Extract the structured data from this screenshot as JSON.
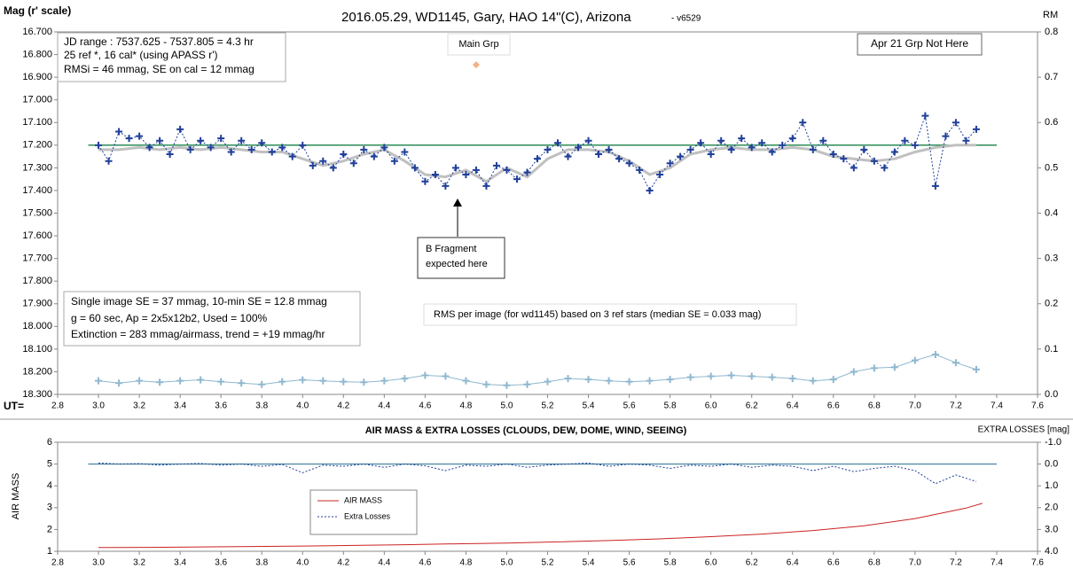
{
  "chart_data": [
    {
      "type": "scatter",
      "title": "2016.05.29,  WD1145, Gary, HAO  14\"(C), Arizona",
      "subtitle": "- v6529",
      "ylabel": "Mag (r' scale)",
      "y2label": "RM",
      "xlabel": "UT=",
      "xlim": [
        2.8,
        7.6
      ],
      "xticks": [
        2.8,
        {
          "value": 3,
          "label": "3.0"
        },
        3.2,
        3.4,
        3.6,
        3.8,
        {
          "value": 4,
          "label": "4.0"
        },
        4.2,
        4.4,
        4.6,
        4.8,
        {
          "value": 5,
          "label": "5.0"
        },
        5.2,
        5.4,
        5.6,
        5.8,
        {
          "value": 6,
          "label": "6.0"
        },
        6.2,
        6.4,
        6.6,
        6.8,
        {
          "value": 7,
          "label": "7.0"
        },
        7.2,
        7.4,
        7.6
      ],
      "ylim": [
        16.7,
        18.3
      ],
      "yreverse": true,
      "yticks": [
        {
          "value": 16.7,
          "label": "16.700"
        },
        {
          "value": 16.8,
          "label": "16.800"
        },
        {
          "value": 16.9,
          "label": "16.900"
        },
        {
          "value": 17.0,
          "label": "17.000"
        },
        {
          "value": 17.1,
          "label": "17.100"
        },
        {
          "value": 17.2,
          "label": "17.200"
        },
        {
          "value": 17.3,
          "label": "17.300"
        },
        {
          "value": 17.4,
          "label": "17.400"
        },
        {
          "value": 17.5,
          "label": "17.500"
        },
        {
          "value": 17.6,
          "label": "17.600"
        },
        {
          "value": 17.7,
          "label": "17.700"
        },
        {
          "value": 17.8,
          "label": "17.800"
        },
        {
          "value": 17.9,
          "label": "17.900"
        },
        {
          "value": 18.0,
          "label": "18.000"
        },
        {
          "value": 18.1,
          "label": "18.100"
        },
        {
          "value": 18.2,
          "label": "18.200"
        },
        {
          "value": 18.3,
          "label": "18.300"
        }
      ],
      "y2lim": [
        0,
        0.8
      ],
      "y2ticks": [
        {
          "value": 0,
          "label": "0.0"
        },
        0.1,
        0.2,
        0.3,
        0.4,
        0.5,
        0.6,
        0.7,
        0.8
      ],
      "annotations": {
        "info": [
          "JD range : 7537.625 - 7537.805  = 4.3 hr",
          "  25 ref *, 16 cal* (using APASS r')",
          "RMSi = 46 mmag, SE on cal = 12 mmag"
        ],
        "stats": [
          "Single image SE = 37 mmag, 10-min SE = 12.8 mmag",
          "g = 60 sec, Ap = 2x5x12b2, Used = 100%",
          "Extinction = 283 mmag/airmass, trend = +19 mmag/hr"
        ],
        "rms_note": "RMS per image (for wd1145) based on 3 ref stars (median SE = 0.033 mag)",
        "main_grp": "Main Grp",
        "apr21": "Apr 21 Grp Not Here",
        "b_fragment": [
          "B Fragment",
          "expected here"
        ]
      },
      "series": [
        {
          "color": "#2e8b57",
          "marker": "none",
          "line": "solid",
          "width": 1.5,
          "x": [
            2.95,
            7.4
          ],
          "values": [
            17.2,
            17.2
          ]
        },
        {
          "color": "#c0c0c0",
          "marker": "none",
          "line": "solid",
          "width": 3,
          "x": [
            3.0,
            3.1,
            3.2,
            3.3,
            3.4,
            3.5,
            3.6,
            3.7,
            3.8,
            3.9,
            4.0,
            4.1,
            4.2,
            4.3,
            4.4,
            4.5,
            4.6,
            4.7,
            4.8,
            4.9,
            5.0,
            5.1,
            5.2,
            5.3,
            5.4,
            5.5,
            5.6,
            5.7,
            5.8,
            5.9,
            6.0,
            6.1,
            6.2,
            6.3,
            6.4,
            6.5,
            6.6,
            6.7,
            6.8,
            6.9,
            7.0,
            7.1,
            7.2,
            7.3
          ],
          "values": [
            17.22,
            17.22,
            17.21,
            17.22,
            17.21,
            17.22,
            17.21,
            17.22,
            17.23,
            17.23,
            17.26,
            17.29,
            17.27,
            17.24,
            17.22,
            17.27,
            17.33,
            17.34,
            17.31,
            17.36,
            17.3,
            17.34,
            17.26,
            17.22,
            17.22,
            17.23,
            17.27,
            17.33,
            17.3,
            17.24,
            17.22,
            17.21,
            17.22,
            17.22,
            17.21,
            17.22,
            17.25,
            17.26,
            17.27,
            17.26,
            17.23,
            17.21,
            17.2,
            17.2
          ]
        },
        {
          "color": "#1f3f99",
          "marker": "plus",
          "line": "dotted",
          "width": 1,
          "x": [
            3.0,
            3.05,
            3.1,
            3.15,
            3.2,
            3.25,
            3.3,
            3.35,
            3.4,
            3.45,
            3.5,
            3.55,
            3.6,
            3.65,
            3.7,
            3.75,
            3.8,
            3.85,
            3.9,
            3.95,
            4.0,
            4.05,
            4.1,
            4.15,
            4.2,
            4.25,
            4.3,
            4.35,
            4.4,
            4.45,
            4.5,
            4.55,
            4.6,
            4.65,
            4.7,
            4.75,
            4.8,
            4.85,
            4.9,
            4.95,
            5.0,
            5.05,
            5.1,
            5.15,
            5.2,
            5.25,
            5.3,
            5.35,
            5.4,
            5.45,
            5.5,
            5.55,
            5.6,
            5.65,
            5.7,
            5.75,
            5.8,
            5.85,
            5.9,
            5.95,
            6.0,
            6.05,
            6.1,
            6.15,
            6.2,
            6.25,
            6.3,
            6.35,
            6.4,
            6.45,
            6.5,
            6.55,
            6.6,
            6.65,
            6.7,
            6.75,
            6.8,
            6.85,
            6.9,
            6.95,
            7.0,
            7.05,
            7.1,
            7.15,
            7.2,
            7.25,
            7.3
          ],
          "values": [
            17.2,
            17.27,
            17.14,
            17.17,
            17.16,
            17.21,
            17.18,
            17.24,
            17.13,
            17.22,
            17.18,
            17.21,
            17.17,
            17.23,
            17.18,
            17.22,
            17.19,
            17.23,
            17.21,
            17.25,
            17.2,
            17.29,
            17.27,
            17.3,
            17.24,
            17.28,
            17.22,
            17.25,
            17.21,
            17.27,
            17.23,
            17.3,
            17.36,
            17.33,
            17.38,
            17.3,
            17.33,
            17.31,
            17.38,
            17.29,
            17.31,
            17.35,
            17.32,
            17.26,
            17.22,
            17.19,
            17.25,
            17.21,
            17.18,
            17.24,
            17.22,
            17.26,
            17.28,
            17.31,
            17.4,
            17.33,
            17.28,
            17.25,
            17.22,
            17.19,
            17.24,
            17.18,
            17.22,
            17.17,
            17.21,
            17.19,
            17.23,
            17.2,
            17.17,
            17.1,
            17.22,
            17.18,
            17.24,
            17.26,
            17.3,
            17.22,
            17.27,
            17.3,
            17.23,
            17.18,
            17.2,
            17.07,
            17.38,
            17.16,
            17.1,
            17.18,
            17.13
          ]
        },
        {
          "color": "#8fb8cf",
          "marker": "plus",
          "line": "solid",
          "width": 1,
          "axis": "y2",
          "x": [
            3.0,
            3.1,
            3.2,
            3.3,
            3.4,
            3.5,
            3.6,
            3.7,
            3.8,
            3.9,
            4.0,
            4.1,
            4.2,
            4.3,
            4.4,
            4.5,
            4.6,
            4.7,
            4.8,
            4.9,
            5.0,
            5.1,
            5.2,
            5.3,
            5.4,
            5.5,
            5.6,
            5.7,
            5.8,
            5.9,
            6.0,
            6.1,
            6.2,
            6.3,
            6.4,
            6.5,
            6.6,
            6.7,
            6.8,
            6.9,
            7.0,
            7.1,
            7.2,
            7.3
          ],
          "values": [
            0.03,
            0.025,
            0.03,
            0.027,
            0.03,
            0.032,
            0.028,
            0.025,
            0.022,
            0.028,
            0.032,
            0.03,
            0.028,
            0.027,
            0.03,
            0.035,
            0.042,
            0.04,
            0.03,
            0.022,
            0.02,
            0.022,
            0.028,
            0.035,
            0.033,
            0.03,
            0.028,
            0.03,
            0.033,
            0.038,
            0.04,
            0.042,
            0.04,
            0.038,
            0.035,
            0.03,
            0.033,
            0.05,
            0.058,
            0.06,
            0.075,
            0.088,
            0.07,
            0.055
          ]
        },
        {
          "color": "#f4b183",
          "marker": "diamond",
          "line": "none",
          "width": 1,
          "x": [
            4.85
          ],
          "values": [
            16.845
          ]
        }
      ]
    },
    {
      "type": "line",
      "title": "AIR MASS & EXTRA LOSSES (CLOUDS, DEW, DOME, WIND, SEEING)",
      "ylabel": "AIR MASS",
      "y2label": "EXTRA LOSSES [mag]",
      "xlim": [
        2.8,
        7.6
      ],
      "xticks": [
        2.8,
        {
          "value": 3,
          "label": "3.0"
        },
        3.2,
        3.4,
        3.6,
        3.8,
        {
          "value": 4,
          "label": "4.0"
        },
        4.2,
        4.4,
        4.6,
        4.8,
        {
          "value": 5,
          "label": "5.0"
        },
        5.2,
        5.4,
        5.6,
        5.8,
        {
          "value": 6,
          "label": "6.0"
        },
        6.2,
        6.4,
        6.6,
        6.8,
        {
          "value": 7,
          "label": "7.0"
        },
        7.2,
        7.4,
        7.6
      ],
      "ylim": [
        1,
        6
      ],
      "yticks": [
        1,
        2,
        3,
        4,
        5,
        6
      ],
      "y2lim": [
        -1,
        4
      ],
      "y2reverse": true,
      "y2ticks": [
        {
          "value": -1,
          "label": "-1.0"
        },
        {
          "value": 0,
          "label": "0.0"
        },
        {
          "value": 1,
          "label": "1.0"
        },
        {
          "value": 2,
          "label": "2.0"
        },
        {
          "value": 3,
          "label": "3.0"
        },
        {
          "value": 4,
          "label": "4.0"
        }
      ],
      "legend": "inside-left",
      "series": [
        {
          "color": "#1f6f8f",
          "marker": "none",
          "line": "solid",
          "width": 1,
          "axis": "y2",
          "x": [
            2.95,
            7.4
          ],
          "values": [
            0,
            0
          ]
        },
        {
          "name": "AIR MASS",
          "color": "#cc2222",
          "marker": "none",
          "line": "solid",
          "width": 1,
          "x": [
            3.0,
            3.25,
            3.5,
            3.75,
            4.0,
            4.25,
            4.5,
            4.75,
            5.0,
            5.25,
            5.5,
            5.75,
            6.0,
            6.25,
            6.5,
            6.75,
            7.0,
            7.25,
            7.33
          ],
          "values": [
            1.17,
            1.18,
            1.2,
            1.22,
            1.24,
            1.27,
            1.3,
            1.34,
            1.38,
            1.43,
            1.49,
            1.57,
            1.67,
            1.79,
            1.95,
            2.17,
            2.5,
            2.98,
            3.2
          ]
        },
        {
          "name": "Extra Losses",
          "color": "#1f3f99",
          "marker": "none",
          "line": "dotted",
          "width": 1,
          "axis": "y2",
          "x": [
            3.0,
            3.1,
            3.2,
            3.3,
            3.4,
            3.5,
            3.6,
            3.7,
            3.8,
            3.9,
            4.0,
            4.1,
            4.2,
            4.3,
            4.4,
            4.5,
            4.6,
            4.7,
            4.8,
            4.9,
            5.0,
            5.1,
            5.2,
            5.3,
            5.4,
            5.5,
            5.6,
            5.7,
            5.8,
            5.9,
            6.0,
            6.1,
            6.2,
            6.3,
            6.4,
            6.5,
            6.6,
            6.7,
            6.8,
            6.9,
            7.0,
            7.1,
            7.2,
            7.3
          ],
          "values": [
            -0.05,
            0.0,
            -0.02,
            0.05,
            0.0,
            -0.03,
            0.05,
            0.0,
            0.1,
            0.02,
            0.4,
            0.05,
            0.1,
            0.0,
            0.15,
            0.0,
            0.08,
            0.3,
            0.05,
            0.1,
            0.0,
            0.15,
            0.05,
            0.0,
            -0.05,
            0.1,
            0.0,
            0.05,
            0.2,
            0.05,
            0.1,
            0.0,
            0.15,
            0.05,
            0.1,
            0.3,
            0.1,
            0.35,
            0.2,
            0.1,
            0.3,
            0.9,
            0.5,
            0.8
          ]
        }
      ]
    }
  ]
}
